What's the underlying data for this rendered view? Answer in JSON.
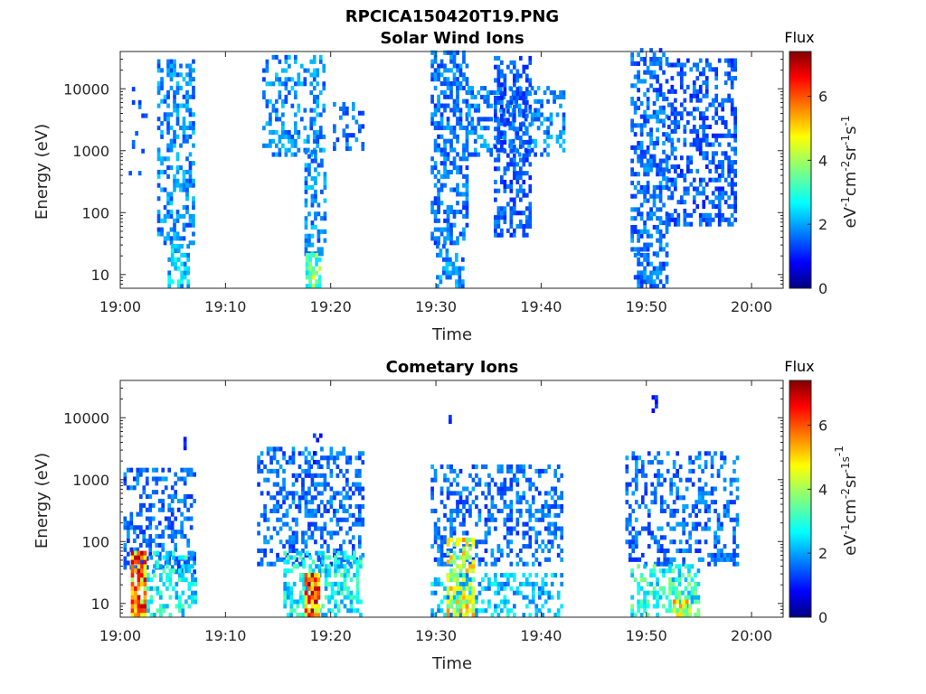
{
  "page_title": "RPCICA150420T19.PNG",
  "colors": {
    "axis": "#262626",
    "colormap": "jet"
  },
  "chart_data": [
    {
      "type": "heatmap",
      "title": "Solar Wind Ions",
      "xlabel": "Time",
      "ylabel": "Energy (eV)",
      "x_ticks": [
        "19:00",
        "19:10",
        "19:20",
        "19:30",
        "19:40",
        "19:50",
        "20:00"
      ],
      "xlim_minutes": [
        0,
        63
      ],
      "y_scale": "log",
      "ylim": [
        6,
        40000
      ],
      "y_ticks": [
        10,
        100,
        1000,
        10000
      ],
      "y_tick_labels": [
        "10",
        "100",
        "1000",
        "10000"
      ],
      "colorbar": {
        "title": "Flux",
        "label": "eV-1cm-2sr-1s-1",
        "range": [
          0,
          7.4
        ],
        "ticks": [
          "0",
          "2",
          "4",
          "6"
        ]
      },
      "grid": false,
      "bursts": [
        {
          "t_start": 0.5,
          "t_end": 2.5,
          "e_low": 400,
          "e_high": 10000,
          "peak_flux": 2.0,
          "density": 0.12
        },
        {
          "t_start": 3.5,
          "t_end": 6.8,
          "e_low": 30,
          "e_high": 30000,
          "peak_flux": 2.5,
          "density": 0.45
        },
        {
          "t_start": 4.5,
          "t_end": 6.5,
          "e_low": 6,
          "e_high": 30,
          "peak_flux": 3.0,
          "density": 0.6
        },
        {
          "t_start": 13.5,
          "t_end": 19.5,
          "e_low": 800,
          "e_high": 30000,
          "peak_flux": 2.5,
          "density": 0.35
        },
        {
          "t_start": 17.5,
          "t_end": 19.5,
          "e_low": 20,
          "e_high": 1000,
          "peak_flux": 2.5,
          "density": 0.5
        },
        {
          "t_start": 17.6,
          "t_end": 19.0,
          "e_low": 6,
          "e_high": 20,
          "peak_flux": 4.5,
          "density": 0.85
        },
        {
          "t_start": 20.2,
          "t_end": 23.0,
          "e_low": 1000,
          "e_high": 6000,
          "peak_flux": 2.2,
          "density": 0.35
        },
        {
          "t_start": 29.5,
          "t_end": 33.0,
          "e_low": 30,
          "e_high": 40000,
          "peak_flux": 2.2,
          "density": 0.55
        },
        {
          "t_start": 30.0,
          "t_end": 32.5,
          "e_low": 6,
          "e_high": 30,
          "peak_flux": 2.5,
          "density": 0.5
        },
        {
          "t_start": 33.0,
          "t_end": 42.0,
          "e_low": 800,
          "e_high": 10000,
          "peak_flux": 2.4,
          "density": 0.35
        },
        {
          "t_start": 35.5,
          "t_end": 39.0,
          "e_low": 40,
          "e_high": 30000,
          "peak_flux": 2.0,
          "density": 0.45
        },
        {
          "t_start": 48.5,
          "t_end": 52.0,
          "e_low": 20,
          "e_high": 40000,
          "peak_flux": 2.2,
          "density": 0.5
        },
        {
          "t_start": 48.8,
          "t_end": 52.0,
          "e_low": 6,
          "e_high": 20,
          "peak_flux": 2.2,
          "density": 0.45
        },
        {
          "t_start": 52.0,
          "t_end": 58.5,
          "e_low": 60,
          "e_high": 30000,
          "peak_flux": 2.0,
          "density": 0.4
        }
      ]
    },
    {
      "type": "heatmap",
      "title": "Cometary Ions",
      "xlabel": "Time",
      "ylabel": "Energy (eV)",
      "x_ticks": [
        "19:00",
        "19:10",
        "19:20",
        "19:30",
        "19:40",
        "19:50",
        "20:00"
      ],
      "xlim_minutes": [
        0,
        63
      ],
      "y_scale": "log",
      "ylim": [
        6,
        40000
      ],
      "y_ticks": [
        10,
        100,
        1000,
        10000
      ],
      "y_tick_labels": [
        "10",
        "100",
        "1000",
        "10000"
      ],
      "colorbar": {
        "title": "Flux",
        "label": "eV-1cm-2sr-1s-1",
        "range": [
          0,
          7.4
        ],
        "ticks": [
          "0",
          "2",
          "4",
          "6"
        ]
      },
      "grid": false,
      "bursts": [
        {
          "t_start": 0.3,
          "t_end": 7.0,
          "e_low": 30,
          "e_high": 1500,
          "peak_flux": 2.2,
          "density": 0.4
        },
        {
          "t_start": 1.0,
          "t_end": 2.5,
          "e_low": 6,
          "e_high": 60,
          "peak_flux": 7.0,
          "density": 0.85
        },
        {
          "t_start": 2.5,
          "t_end": 7.0,
          "e_low": 6,
          "e_high": 60,
          "peak_flux": 3.5,
          "density": 0.45
        },
        {
          "t_start": 6.0,
          "t_end": 6.3,
          "e_low": 3000,
          "e_high": 5000,
          "peak_flux": 1.5,
          "density": 0.6
        },
        {
          "t_start": 13.0,
          "t_end": 23.0,
          "e_low": 40,
          "e_high": 3000,
          "peak_flux": 2.2,
          "density": 0.4
        },
        {
          "t_start": 15.5,
          "t_end": 23.0,
          "e_low": 6,
          "e_high": 60,
          "peak_flux": 3.5,
          "density": 0.5
        },
        {
          "t_start": 17.5,
          "t_end": 19.0,
          "e_low": 6,
          "e_high": 30,
          "peak_flux": 7.2,
          "density": 0.9
        },
        {
          "t_start": 18.0,
          "t_end": 19.0,
          "e_low": 1500,
          "e_high": 5000,
          "peak_flux": 1.5,
          "density": 0.3
        },
        {
          "t_start": 29.5,
          "t_end": 42.0,
          "e_low": 40,
          "e_high": 1500,
          "peak_flux": 2.2,
          "density": 0.35
        },
        {
          "t_start": 29.5,
          "t_end": 42.0,
          "e_low": 6,
          "e_high": 30,
          "peak_flux": 3.0,
          "density": 0.4
        },
        {
          "t_start": 31.0,
          "t_end": 33.5,
          "e_low": 6,
          "e_high": 100,
          "peak_flux": 5.5,
          "density": 0.6
        },
        {
          "t_start": 31.2,
          "t_end": 31.5,
          "e_low": 8000,
          "e_high": 11000,
          "peak_flux": 1.5,
          "density": 1.0
        },
        {
          "t_start": 48.0,
          "t_end": 58.5,
          "e_low": 40,
          "e_high": 2500,
          "peak_flux": 2.2,
          "density": 0.35
        },
        {
          "t_start": 48.5,
          "t_end": 55.0,
          "e_low": 6,
          "e_high": 40,
          "peak_flux": 3.8,
          "density": 0.5
        },
        {
          "t_start": 52.5,
          "t_end": 54.0,
          "e_low": 6,
          "e_high": 10,
          "peak_flux": 6.0,
          "density": 0.7
        },
        {
          "t_start": 50.5,
          "t_end": 51.0,
          "e_low": 12000,
          "e_high": 20000,
          "peak_flux": 1.5,
          "density": 0.8
        }
      ]
    }
  ]
}
